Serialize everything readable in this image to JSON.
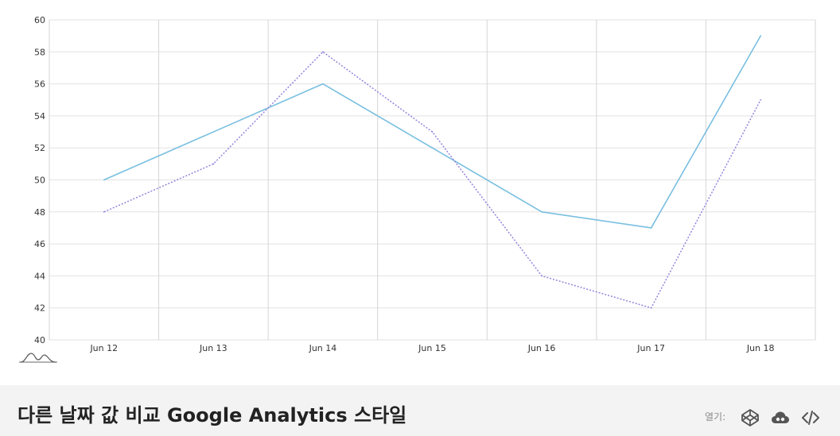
{
  "chart_data": {
    "type": "line",
    "categories": [
      "Jun 12",
      "Jun 13",
      "Jun 14",
      "Jun 15",
      "Jun 16",
      "Jun 17",
      "Jun 18"
    ],
    "series": [
      {
        "values": [
          50,
          53,
          56,
          52,
          48,
          47,
          59
        ],
        "color": "#79bfe0",
        "style": "solid"
      },
      {
        "values": [
          48,
          51,
          58,
          53,
          44,
          42,
          55
        ],
        "color": "#9683de",
        "style": "dotted"
      }
    ],
    "ylim": [
      40,
      60
    ],
    "yticks": [
      "40",
      "42",
      "44",
      "46",
      "48",
      "50",
      "52",
      "54",
      "56",
      "58",
      "60"
    ],
    "grid": true,
    "title": "",
    "xlabel": "",
    "ylabel": ""
  },
  "footer": {
    "title": "다른 날짜 값 비교 Google Analytics 스타일",
    "open_label": "열기:",
    "icons": [
      "codepen-icon",
      "cloud-icon",
      "code-icon"
    ]
  },
  "logo": {
    "icon": "chart-logo-icon"
  }
}
